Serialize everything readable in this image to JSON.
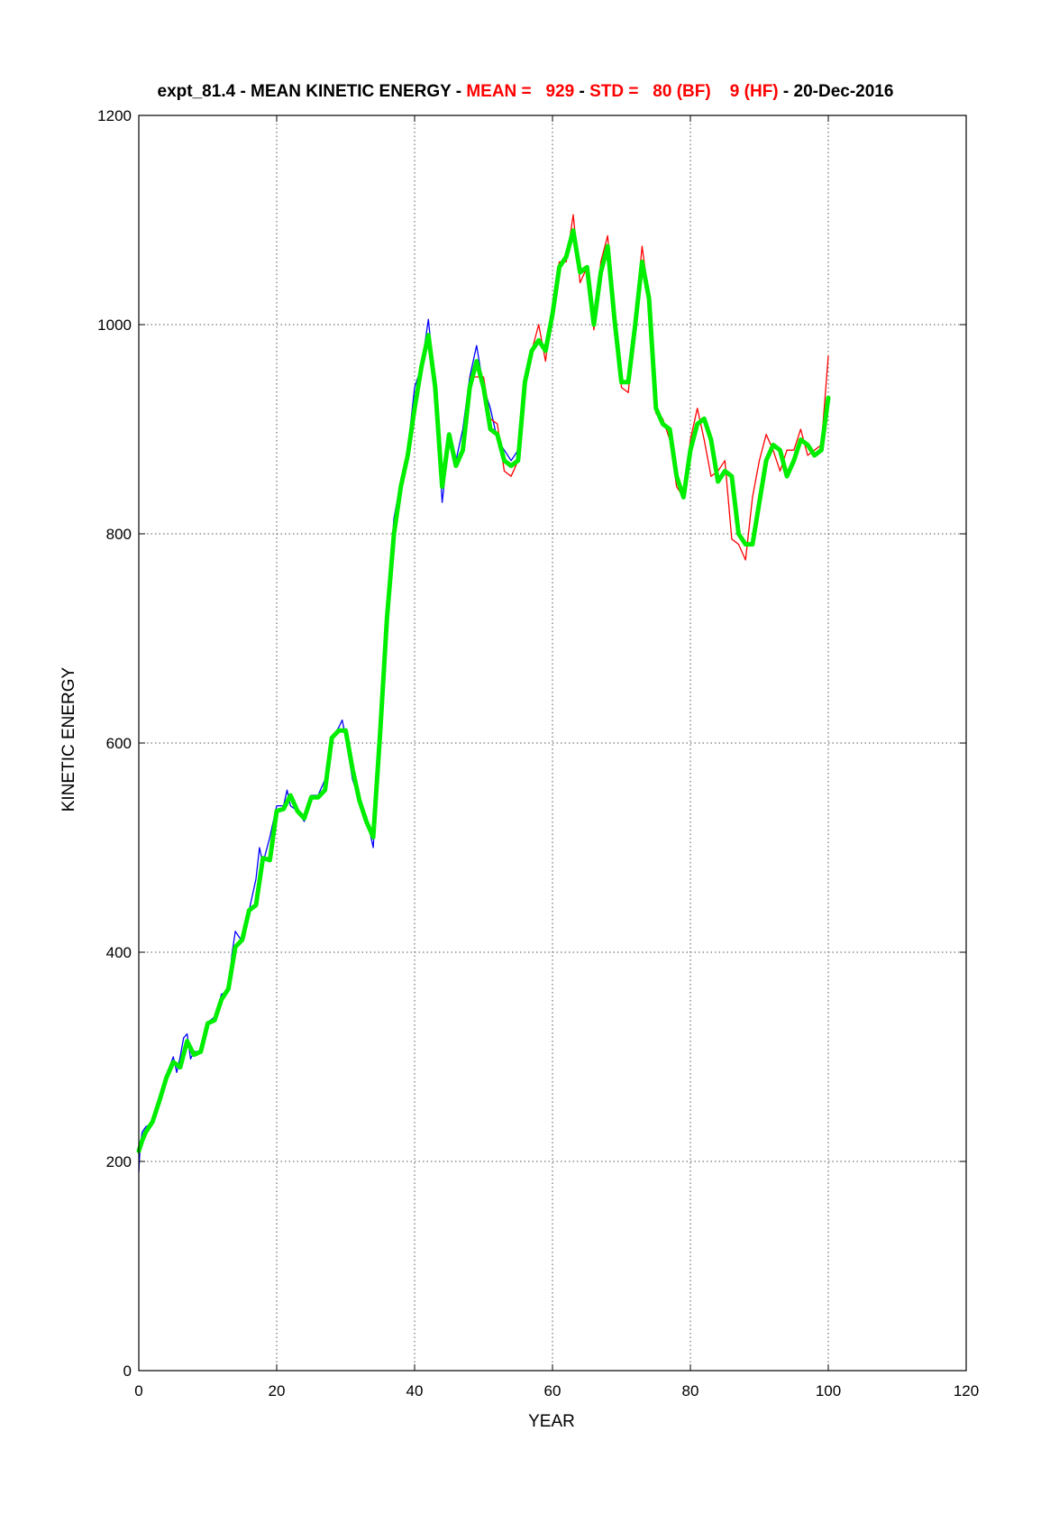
{
  "chart_data": {
    "type": "line",
    "title": {
      "prefix": "expt_81.4 - MEAN KINETIC ENERGY - ",
      "mean_label": "MEAN =   929",
      "sep1": " - ",
      "std_label": "STD =   80 (BF)    9 (HF)",
      "suffix": " - 20-Dec-2016"
    },
    "xlabel": "YEAR",
    "ylabel": "KINETIC ENERGY",
    "xlim": [
      0,
      120
    ],
    "ylim": [
      0,
      1200
    ],
    "xticks": [
      0,
      20,
      40,
      60,
      80,
      100,
      120
    ],
    "yticks": [
      0,
      200,
      400,
      600,
      800,
      1000,
      1200
    ],
    "grid": true,
    "series": [
      {
        "color": "#0000ff",
        "x": [
          0,
          0.2,
          0.5,
          1,
          1.5,
          2,
          3,
          4,
          5,
          5.5,
          6,
          6.5,
          7,
          7.5,
          8,
          9,
          10,
          11,
          12,
          13,
          13.5,
          14,
          15,
          16,
          17,
          17.5,
          18,
          19,
          20,
          21,
          21.5,
          22,
          23,
          24,
          25,
          26,
          27,
          28,
          29,
          29.5,
          30,
          31,
          32,
          33,
          34,
          35,
          36,
          37,
          38,
          39,
          40,
          41,
          42,
          43,
          44,
          45,
          46,
          47,
          48,
          49,
          50,
          51,
          52,
          53,
          54,
          55
        ],
        "y": [
          190,
          215,
          228,
          233,
          235,
          240,
          260,
          283,
          300,
          285,
          300,
          318,
          322,
          298,
          305,
          305,
          333,
          338,
          360,
          362,
          398,
          420,
          410,
          440,
          470,
          500,
          485,
          510,
          540,
          540,
          555,
          540,
          535,
          525,
          550,
          550,
          565,
          605,
          615,
          622,
          605,
          565,
          545,
          530,
          500,
          615,
          730,
          815,
          850,
          880,
          940,
          960,
          1005,
          940,
          830,
          890,
          870,
          900,
          950,
          980,
          940,
          920,
          890,
          880,
          870,
          880
        ]
      },
      {
        "color": "#ff0000",
        "x": [
          48,
          50,
          51,
          52,
          53,
          54,
          55,
          56,
          57,
          58,
          59,
          60,
          61,
          62,
          63,
          64,
          65,
          66,
          67,
          68,
          69,
          70,
          71,
          72,
          73,
          74,
          75,
          76,
          77,
          78,
          79,
          80,
          81,
          82,
          83,
          84,
          85,
          86,
          87,
          88,
          89,
          90,
          91,
          92,
          93,
          94,
          95,
          96,
          97,
          98,
          99,
          100
        ],
        "y": [
          950,
          950,
          910,
          905,
          860,
          855,
          870,
          950,
          975,
          1000,
          965,
          1020,
          1060,
          1060,
          1105,
          1040,
          1055,
          995,
          1060,
          1085,
          1010,
          940,
          935,
          1005,
          1075,
          1025,
          915,
          910,
          890,
          845,
          835,
          890,
          920,
          890,
          855,
          860,
          870,
          795,
          790,
          775,
          835,
          870,
          895,
          880,
          860,
          880,
          880,
          900,
          875,
          880,
          885,
          970
        ]
      },
      {
        "color": "#00ee00",
        "x": [
          0,
          0.5,
          1,
          2,
          3,
          4,
          5,
          6,
          7,
          8,
          9,
          10,
          11,
          12,
          13,
          14,
          15,
          16,
          17,
          18,
          19,
          20,
          21,
          22,
          23,
          24,
          25,
          26,
          27,
          28,
          29,
          30,
          31,
          32,
          33,
          34,
          35,
          36,
          37,
          38,
          39,
          40,
          41,
          42,
          43,
          44,
          45,
          46,
          47,
          48,
          49,
          50,
          51,
          52,
          53,
          54,
          55,
          56,
          57,
          58,
          59,
          60,
          61,
          62,
          63,
          64,
          65,
          66,
          67,
          68,
          69,
          70,
          71,
          72,
          73,
          74,
          75,
          76,
          77,
          78,
          79,
          80,
          81,
          82,
          83,
          84,
          85,
          86,
          87,
          88,
          89,
          90,
          91,
          92,
          93,
          94,
          95,
          96,
          97,
          98,
          99,
          100
        ],
        "y": [
          210,
          220,
          228,
          238,
          258,
          280,
          295,
          290,
          315,
          302,
          305,
          332,
          335,
          355,
          365,
          405,
          412,
          440,
          445,
          490,
          488,
          535,
          537,
          550,
          535,
          528,
          548,
          548,
          555,
          605,
          612,
          612,
          575,
          545,
          525,
          510,
          610,
          720,
          800,
          845,
          875,
          920,
          960,
          990,
          940,
          845,
          895,
          865,
          880,
          940,
          965,
          940,
          900,
          895,
          870,
          865,
          870,
          945,
          975,
          985,
          975,
          1010,
          1055,
          1065,
          1090,
          1050,
          1055,
          1000,
          1050,
          1075,
          1005,
          945,
          945,
          1000,
          1060,
          1025,
          920,
          905,
          900,
          855,
          835,
          880,
          905,
          910,
          890,
          850,
          860,
          855,
          800,
          790,
          790,
          830,
          870,
          885,
          880,
          855,
          870,
          890,
          885,
          875,
          880,
          930
        ]
      }
    ]
  }
}
